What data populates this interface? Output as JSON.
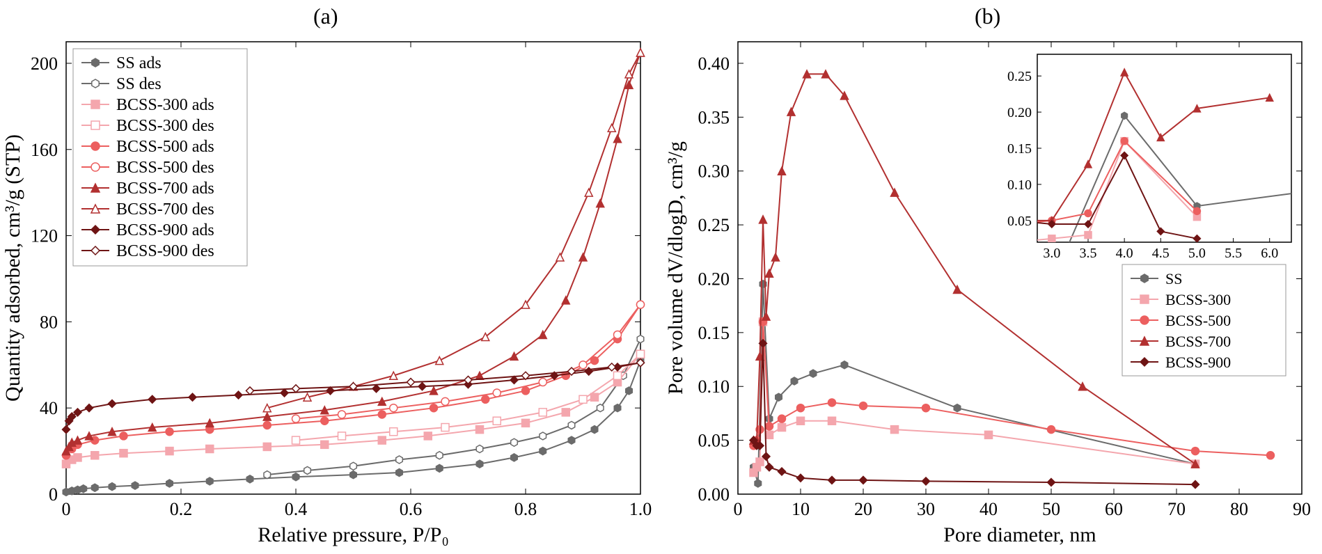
{
  "labels": {
    "panel_a": "(a)",
    "panel_b": "(b)"
  },
  "colors": {
    "ss": "#6b6b6b",
    "b300": "#f4a6ad",
    "b500": "#ec5f5f",
    "b700": "#b23030",
    "b900": "#6e1414",
    "axis": "#000000",
    "tick": "#000000",
    "grid": "#e0e0e0"
  },
  "markers": {
    "ss": "hexagon",
    "b300": "square",
    "b500": "circle",
    "b700": "triangle",
    "b900": "diamond"
  },
  "panel_a": {
    "x": {
      "label": "Relative pressure, P/P₀",
      "min": 0,
      "max": 1.0,
      "ticks": [
        0,
        0.2,
        0.4,
        0.6,
        0.8,
        1.0
      ]
    },
    "y": {
      "label": "Quantity adsorbed, cm³/g (STP)",
      "min": 0,
      "max": 210,
      "ticks": [
        0,
        40,
        80,
        120,
        160,
        200
      ]
    },
    "legend": [
      {
        "k": "ss",
        "fill": true,
        "t": "SS ads"
      },
      {
        "k": "ss",
        "fill": false,
        "t": "SS des"
      },
      {
        "k": "b300",
        "fill": true,
        "t": "BCSS-300 ads"
      },
      {
        "k": "b300",
        "fill": false,
        "t": "BCSS-300 des"
      },
      {
        "k": "b500",
        "fill": true,
        "t": "BCSS-500 ads"
      },
      {
        "k": "b500",
        "fill": false,
        "t": "BCSS-500 des"
      },
      {
        "k": "b700",
        "fill": true,
        "t": "BCSS-700 ads"
      },
      {
        "k": "b700",
        "fill": false,
        "t": "BCSS-700 des"
      },
      {
        "k": "b900",
        "fill": true,
        "t": "BCSS-900 ads"
      },
      {
        "k": "b900",
        "fill": false,
        "t": "BCSS-900 des"
      }
    ],
    "series": {
      "ss_ads": {
        "k": "ss",
        "fill": true,
        "pts": [
          [
            0,
            1
          ],
          [
            0.01,
            1.5
          ],
          [
            0.02,
            2
          ],
          [
            0.03,
            2.5
          ],
          [
            0.05,
            3
          ],
          [
            0.08,
            3.5
          ],
          [
            0.12,
            4
          ],
          [
            0.18,
            5
          ],
          [
            0.25,
            6
          ],
          [
            0.32,
            7
          ],
          [
            0.4,
            8
          ],
          [
            0.5,
            9
          ],
          [
            0.58,
            10
          ],
          [
            0.65,
            12
          ],
          [
            0.72,
            14
          ],
          [
            0.78,
            17
          ],
          [
            0.83,
            20
          ],
          [
            0.88,
            25
          ],
          [
            0.92,
            30
          ],
          [
            0.96,
            40
          ],
          [
            0.98,
            48
          ],
          [
            1.0,
            62
          ]
        ]
      },
      "ss_des": {
        "k": "ss",
        "fill": false,
        "pts": [
          [
            1.0,
            72
          ],
          [
            0.97,
            55
          ],
          [
            0.93,
            40
          ],
          [
            0.88,
            32
          ],
          [
            0.83,
            27
          ],
          [
            0.78,
            24
          ],
          [
            0.72,
            21
          ],
          [
            0.65,
            18
          ],
          [
            0.58,
            16
          ],
          [
            0.5,
            13
          ],
          [
            0.42,
            11
          ],
          [
            0.35,
            9
          ]
        ]
      },
      "b300_ads": {
        "k": "b300",
        "fill": true,
        "pts": [
          [
            0,
            14
          ],
          [
            0.01,
            16
          ],
          [
            0.02,
            17
          ],
          [
            0.05,
            18
          ],
          [
            0.1,
            19
          ],
          [
            0.18,
            20
          ],
          [
            0.25,
            21
          ],
          [
            0.35,
            22
          ],
          [
            0.45,
            23
          ],
          [
            0.55,
            25
          ],
          [
            0.63,
            27
          ],
          [
            0.72,
            30
          ],
          [
            0.8,
            33
          ],
          [
            0.87,
            38
          ],
          [
            0.92,
            45
          ],
          [
            0.96,
            52
          ],
          [
            1.0,
            65
          ]
        ]
      },
      "b300_des": {
        "k": "b300",
        "fill": false,
        "pts": [
          [
            1.0,
            65
          ],
          [
            0.96,
            55
          ],
          [
            0.9,
            44
          ],
          [
            0.83,
            38
          ],
          [
            0.75,
            34
          ],
          [
            0.66,
            31
          ],
          [
            0.57,
            29
          ],
          [
            0.48,
            27
          ],
          [
            0.4,
            25
          ]
        ]
      },
      "b500_ads": {
        "k": "b500",
        "fill": true,
        "pts": [
          [
            0,
            18
          ],
          [
            0.01,
            21
          ],
          [
            0.02,
            23
          ],
          [
            0.05,
            25
          ],
          [
            0.1,
            27
          ],
          [
            0.18,
            29
          ],
          [
            0.25,
            30
          ],
          [
            0.35,
            32
          ],
          [
            0.45,
            34
          ],
          [
            0.55,
            37
          ],
          [
            0.64,
            40
          ],
          [
            0.73,
            44
          ],
          [
            0.8,
            48
          ],
          [
            0.87,
            55
          ],
          [
            0.92,
            62
          ],
          [
            0.96,
            72
          ],
          [
            1.0,
            88
          ]
        ]
      },
      "b500_des": {
        "k": "b500",
        "fill": false,
        "pts": [
          [
            1.0,
            88
          ],
          [
            0.96,
            74
          ],
          [
            0.9,
            60
          ],
          [
            0.83,
            52
          ],
          [
            0.75,
            47
          ],
          [
            0.66,
            43
          ],
          [
            0.57,
            40
          ],
          [
            0.48,
            37
          ],
          [
            0.4,
            35
          ]
        ]
      },
      "b700_ads": {
        "k": "b700",
        "fill": true,
        "pts": [
          [
            0,
            20
          ],
          [
            0.005,
            22
          ],
          [
            0.01,
            24
          ],
          [
            0.02,
            25
          ],
          [
            0.04,
            27
          ],
          [
            0.08,
            29
          ],
          [
            0.15,
            31
          ],
          [
            0.25,
            33
          ],
          [
            0.35,
            36
          ],
          [
            0.45,
            39
          ],
          [
            0.55,
            43
          ],
          [
            0.64,
            48
          ],
          [
            0.72,
            55
          ],
          [
            0.78,
            64
          ],
          [
            0.83,
            74
          ],
          [
            0.87,
            90
          ],
          [
            0.9,
            110
          ],
          [
            0.93,
            135
          ],
          [
            0.96,
            165
          ],
          [
            0.98,
            190
          ],
          [
            1.0,
            205
          ]
        ]
      },
      "b700_des": {
        "k": "b700",
        "fill": false,
        "pts": [
          [
            1.0,
            205
          ],
          [
            0.98,
            195
          ],
          [
            0.95,
            170
          ],
          [
            0.91,
            140
          ],
          [
            0.86,
            110
          ],
          [
            0.8,
            88
          ],
          [
            0.73,
            73
          ],
          [
            0.65,
            62
          ],
          [
            0.57,
            55
          ],
          [
            0.5,
            50
          ],
          [
            0.42,
            45
          ],
          [
            0.35,
            40
          ]
        ]
      },
      "b900_ads": {
        "k": "b900",
        "fill": true,
        "pts": [
          [
            0,
            30
          ],
          [
            0.005,
            34
          ],
          [
            0.01,
            36
          ],
          [
            0.02,
            38
          ],
          [
            0.04,
            40
          ],
          [
            0.08,
            42
          ],
          [
            0.15,
            44
          ],
          [
            0.22,
            45
          ],
          [
            0.3,
            46
          ],
          [
            0.38,
            47
          ],
          [
            0.46,
            48
          ],
          [
            0.54,
            49
          ],
          [
            0.62,
            50
          ],
          [
            0.7,
            51
          ],
          [
            0.78,
            53
          ],
          [
            0.85,
            55
          ],
          [
            0.91,
            57
          ],
          [
            0.96,
            59
          ],
          [
            1.0,
            61
          ]
        ]
      },
      "b900_des": {
        "k": "b900",
        "fill": false,
        "pts": [
          [
            1.0,
            61
          ],
          [
            0.95,
            59
          ],
          [
            0.88,
            57
          ],
          [
            0.8,
            55
          ],
          [
            0.7,
            53
          ],
          [
            0.6,
            52
          ],
          [
            0.5,
            50
          ],
          [
            0.4,
            49
          ],
          [
            0.32,
            48
          ]
        ]
      }
    }
  },
  "panel_b": {
    "x": {
      "label": "Pore diameter, nm",
      "min": 0,
      "max": 90,
      "ticks": [
        0,
        10,
        20,
        30,
        40,
        50,
        60,
        70,
        80,
        90
      ]
    },
    "y": {
      "label": "Pore volume dV/dlogD, cm³/g",
      "min": 0,
      "max": 0.42,
      "ticks": [
        0,
        0.05,
        0.1,
        0.15,
        0.2,
        0.25,
        0.3,
        0.35,
        0.4
      ]
    },
    "legend": [
      {
        "k": "ss",
        "t": "SS"
      },
      {
        "k": "b300",
        "t": "BCSS-300"
      },
      {
        "k": "b500",
        "t": "BCSS-500"
      },
      {
        "k": "b700",
        "t": "BCSS-700"
      },
      {
        "k": "b900",
        "t": "BCSS-900"
      }
    ],
    "series": {
      "ss": {
        "k": "ss",
        "pts": [
          [
            2.5,
            0.025
          ],
          [
            3.2,
            0.01
          ],
          [
            4.0,
            0.195
          ],
          [
            5.0,
            0.07
          ],
          [
            6.5,
            0.09
          ],
          [
            9,
            0.105
          ],
          [
            12,
            0.112
          ],
          [
            17,
            0.12
          ],
          [
            35,
            0.08
          ],
          [
            73,
            0.028
          ]
        ]
      },
      "b300": {
        "k": "b300",
        "pts": [
          [
            2.5,
            0.02
          ],
          [
            3.0,
            0.025
          ],
          [
            3.5,
            0.03
          ],
          [
            4.0,
            0.16
          ],
          [
            5.0,
            0.055
          ],
          [
            7,
            0.062
          ],
          [
            10,
            0.068
          ],
          [
            15,
            0.068
          ],
          [
            25,
            0.06
          ],
          [
            40,
            0.055
          ],
          [
            73,
            0.028
          ]
        ]
      },
      "b500": {
        "k": "b500",
        "pts": [
          [
            2.5,
            0.045
          ],
          [
            3.0,
            0.05
          ],
          [
            3.5,
            0.06
          ],
          [
            4.0,
            0.16
          ],
          [
            5.0,
            0.063
          ],
          [
            7,
            0.07
          ],
          [
            10,
            0.08
          ],
          [
            15,
            0.085
          ],
          [
            20,
            0.082
          ],
          [
            30,
            0.08
          ],
          [
            50,
            0.06
          ],
          [
            73,
            0.04
          ],
          [
            85,
            0.036
          ]
        ]
      },
      "b700": {
        "k": "b700",
        "pts": [
          [
            2.5,
            0.05
          ],
          [
            3.0,
            0.05
          ],
          [
            3.5,
            0.128
          ],
          [
            4.0,
            0.255
          ],
          [
            4.5,
            0.165
          ],
          [
            5.0,
            0.205
          ],
          [
            6.0,
            0.22
          ],
          [
            7.0,
            0.3
          ],
          [
            8.5,
            0.355
          ],
          [
            11,
            0.39
          ],
          [
            14,
            0.39
          ],
          [
            17,
            0.37
          ],
          [
            25,
            0.28
          ],
          [
            35,
            0.19
          ],
          [
            55,
            0.1
          ],
          [
            73,
            0.028
          ]
        ]
      },
      "b900": {
        "k": "b900",
        "pts": [
          [
            2.5,
            0.05
          ],
          [
            3.0,
            0.045
          ],
          [
            3.5,
            0.045
          ],
          [
            4.0,
            0.14
          ],
          [
            4.5,
            0.035
          ],
          [
            5,
            0.025
          ],
          [
            7,
            0.021
          ],
          [
            10,
            0.015
          ],
          [
            15,
            0.013
          ],
          [
            20,
            0.013
          ],
          [
            30,
            0.012
          ],
          [
            50,
            0.011
          ],
          [
            73,
            0.009
          ]
        ]
      }
    },
    "inset": {
      "x": {
        "min": 2.8,
        "max": 6.3,
        "ticks": [
          3.0,
          3.5,
          4.0,
          4.5,
          5.0,
          5.5,
          6.0
        ]
      },
      "y": {
        "min": 0.02,
        "max": 0.28,
        "ticks": [
          0.05,
          0.1,
          0.15,
          0.2,
          0.25
        ]
      }
    }
  }
}
